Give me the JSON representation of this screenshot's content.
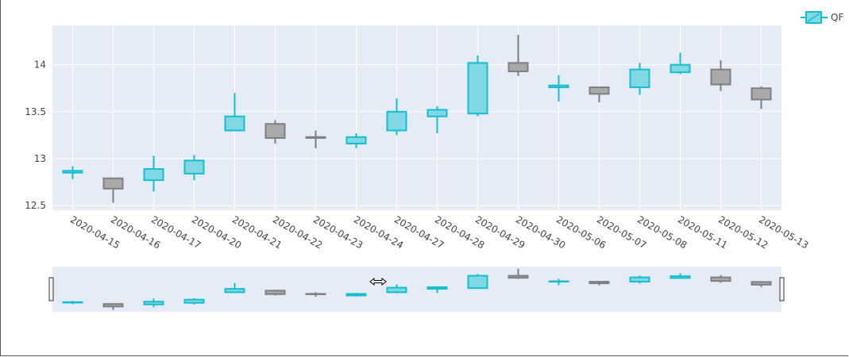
{
  "chart_data": {
    "type": "candlestick",
    "series_name": "QF",
    "increasing_color": "#17becf",
    "decreasing_color": "#7f7f7f",
    "plot_bg": "#e5ecf6",
    "ylim": [
      12.45,
      14.42
    ],
    "y_ticks": [
      12.5,
      13,
      13.5,
      14
    ],
    "y_tick_labels": [
      "12.5",
      "13",
      "13.5",
      "14"
    ],
    "categories": [
      "2020-04-15",
      "2020-04-16",
      "2020-04-17",
      "2020-04-20",
      "2020-04-21",
      "2020-04-22",
      "2020-04-23",
      "2020-04-24",
      "2020-04-27",
      "2020-04-28",
      "2020-04-29",
      "2020-04-30",
      "2020-05-06",
      "2020-05-07",
      "2020-05-08",
      "2020-05-11",
      "2020-05-12",
      "2020-05-13"
    ],
    "candles": [
      {
        "open": 12.85,
        "high": 12.92,
        "low": 12.78,
        "close": 12.87
      },
      {
        "open": 12.79,
        "high": 12.79,
        "low": 12.53,
        "close": 12.68
      },
      {
        "open": 12.77,
        "high": 13.03,
        "low": 12.65,
        "close": 12.89
      },
      {
        "open": 12.84,
        "high": 13.04,
        "low": 12.77,
        "close": 12.98
      },
      {
        "open": 13.3,
        "high": 13.7,
        "low": 13.3,
        "close": 13.45
      },
      {
        "open": 13.37,
        "high": 13.41,
        "low": 13.16,
        "close": 13.22
      },
      {
        "open": 13.23,
        "high": 13.3,
        "low": 13.11,
        "close": 13.22
      },
      {
        "open": 13.16,
        "high": 13.27,
        "low": 13.11,
        "close": 13.23
      },
      {
        "open": 13.3,
        "high": 13.64,
        "low": 13.25,
        "close": 13.5
      },
      {
        "open": 13.45,
        "high": 13.56,
        "low": 13.27,
        "close": 13.52
      },
      {
        "open": 13.48,
        "high": 14.1,
        "low": 13.45,
        "close": 14.02
      },
      {
        "open": 14.02,
        "high": 14.32,
        "low": 13.88,
        "close": 13.93
      },
      {
        "open": 13.76,
        "high": 13.89,
        "low": 13.61,
        "close": 13.78
      },
      {
        "open": 13.76,
        "high": 13.76,
        "low": 13.6,
        "close": 13.69
      },
      {
        "open": 13.76,
        "high": 14.02,
        "low": 13.68,
        "close": 13.95
      },
      {
        "open": 13.92,
        "high": 14.13,
        "low": 13.9,
        "close": 14.0
      },
      {
        "open": 13.95,
        "high": 14.05,
        "low": 13.72,
        "close": 13.79
      },
      {
        "open": 13.75,
        "high": 13.77,
        "low": 13.53,
        "close": 13.63
      }
    ]
  }
}
